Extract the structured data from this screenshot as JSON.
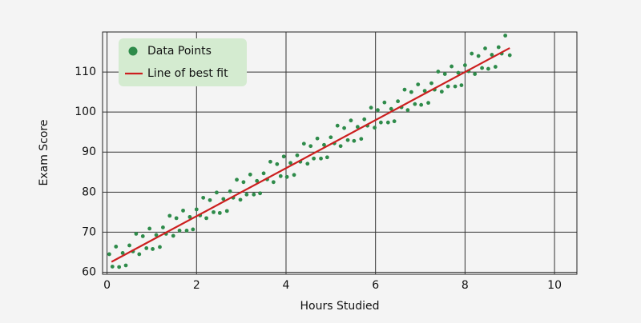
{
  "chart_data": {
    "type": "scatter",
    "xlabel": "Hours Studied",
    "ylabel": "Exam Score",
    "xlim": [
      -0.1,
      10.5
    ],
    "ylim": [
      59.5,
      120
    ],
    "xticks": [
      0,
      2,
      4,
      6,
      8,
      10
    ],
    "yticks": [
      60,
      70,
      80,
      90,
      100,
      110
    ],
    "grid": true,
    "legend": "upper left",
    "series": [
      {
        "name": "Data Points",
        "type": "scatter",
        "color": "#2e8b4a",
        "x": [
          0.05,
          0.12,
          0.2,
          0.27,
          0.35,
          0.42,
          0.5,
          0.58,
          0.65,
          0.72,
          0.8,
          0.88,
          0.95,
          1.02,
          1.1,
          1.18,
          1.25,
          1.32,
          1.4,
          1.48,
          1.55,
          1.62,
          1.7,
          1.78,
          1.85,
          1.92,
          2.0,
          2.08,
          2.15,
          2.22,
          2.3,
          2.38,
          2.45,
          2.52,
          2.6,
          2.68,
          2.75,
          2.82,
          2.9,
          2.98,
          3.05,
          3.12,
          3.2,
          3.28,
          3.35,
          3.42,
          3.5,
          3.58,
          3.65,
          3.72,
          3.8,
          3.88,
          3.95,
          4.02,
          4.1,
          4.18,
          4.25,
          4.32,
          4.4,
          4.48,
          4.55,
          4.62,
          4.7,
          4.78,
          4.85,
          4.92,
          5.0,
          5.08,
          5.15,
          5.22,
          5.3,
          5.38,
          5.45,
          5.52,
          5.6,
          5.68,
          5.75,
          5.82,
          5.9,
          5.98,
          6.05,
          6.12,
          6.2,
          6.28,
          6.35,
          6.42,
          6.5,
          6.58,
          6.65,
          6.72,
          6.8,
          6.88,
          6.95,
          7.02,
          7.1,
          7.18,
          7.25,
          7.32,
          7.4,
          7.48,
          7.55,
          7.62,
          7.7,
          7.78,
          7.85,
          7.92,
          8.0,
          8.08,
          8.15,
          8.22,
          8.3,
          8.38,
          8.45,
          8.52,
          8.6,
          8.68,
          8.75,
          8.82,
          8.9,
          9.0
        ],
        "values": [
          64.5,
          61.4,
          66.4,
          61.3,
          64.8,
          61.7,
          66.7,
          65.2,
          69.6,
          64.5,
          69.0,
          66.0,
          70.9,
          65.8,
          69.3,
          66.3,
          71.2,
          69.6,
          74.1,
          69.1,
          73.5,
          70.4,
          75.4,
          70.4,
          73.8,
          70.7,
          75.7,
          74.2,
          78.6,
          73.5,
          78.0,
          75.0,
          79.9,
          74.8,
          78.3,
          75.3,
          80.2,
          78.6,
          83.1,
          78.1,
          82.5,
          79.4,
          84.4,
          79.4,
          82.8,
          79.7,
          84.7,
          83.2,
          87.6,
          82.5,
          87.0,
          84.0,
          88.9,
          83.8,
          87.3,
          84.3,
          89.2,
          87.6,
          92.1,
          87.1,
          91.5,
          88.4,
          93.4,
          88.4,
          91.8,
          88.7,
          93.7,
          92.2,
          96.6,
          91.5,
          96.0,
          93.0,
          97.9,
          92.8,
          96.3,
          93.3,
          98.2,
          96.6,
          101.1,
          96.1,
          100.5,
          97.4,
          102.4,
          97.4,
          100.8,
          97.7,
          102.7,
          101.2,
          105.6,
          100.5,
          105.0,
          102.0,
          106.9,
          101.8,
          105.3,
          102.3,
          107.2,
          105.6,
          110.1,
          105.1,
          109.5,
          106.4,
          111.4,
          106.4,
          109.8,
          106.7,
          111.7,
          110.2,
          114.6,
          109.5,
          114.0,
          111.0,
          115.9,
          110.8,
          114.3,
          111.3,
          116.2,
          114.6,
          119.1,
          114.2
        ]
      },
      {
        "name": "Line of best fit",
        "type": "line",
        "color": "#cc1f1f",
        "x": [
          0.1,
          9.0
        ],
        "values": [
          62.6,
          116.0
        ]
      }
    ]
  }
}
